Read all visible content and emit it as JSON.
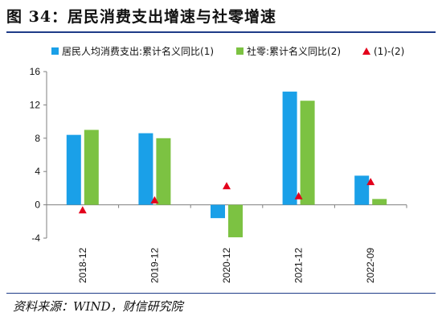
{
  "title": "图 34：居民消费支出增速与社零增速",
  "source": "资料来源：WIND，财信研究院",
  "chart_data": {
    "type": "bar",
    "categories": [
      "2018-12",
      "2019-12",
      "2020-12",
      "2021-12",
      "2022-09"
    ],
    "series": [
      {
        "name": "居民人均消费支出:累计名义同比(1)",
        "kind": "bar",
        "color": "#1aa0e8",
        "values": [
          8.4,
          8.6,
          -1.6,
          13.6,
          3.5
        ]
      },
      {
        "name": "社零:累计名义同比(2)",
        "kind": "bar",
        "color": "#7cc242",
        "values": [
          9.0,
          8.0,
          -3.9,
          12.5,
          0.7
        ]
      },
      {
        "name": "(1)-(2)",
        "kind": "marker",
        "color": "#e3001b",
        "values": [
          -0.6,
          0.6,
          2.3,
          1.1,
          2.8
        ]
      }
    ],
    "yticks": [
      -4,
      0,
      4,
      8,
      12,
      16
    ],
    "ylim": [
      -4,
      16
    ],
    "legend_position": "top"
  }
}
